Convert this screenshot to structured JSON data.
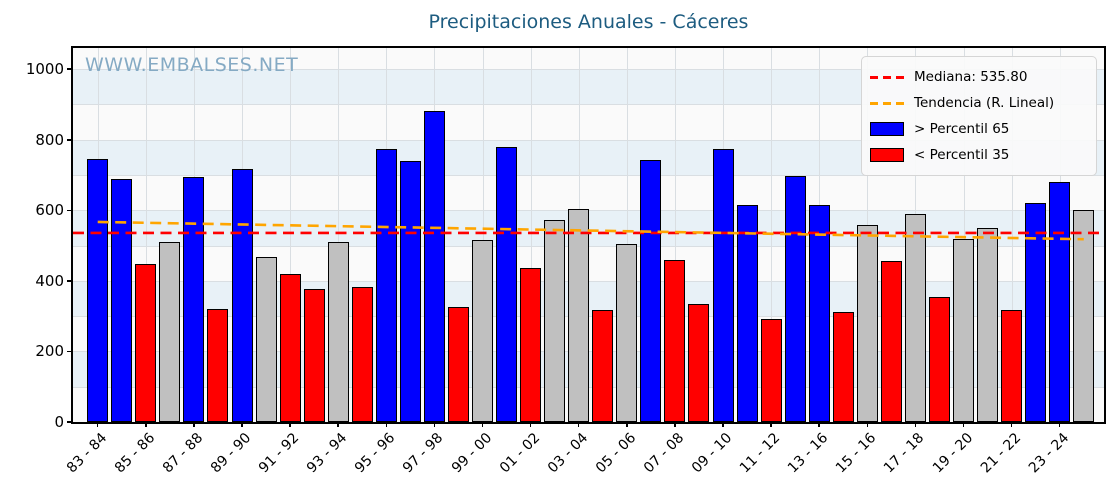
{
  "title": "Precipitaciones Anuales - Cáceres",
  "watermark": "WWW.EMBALSES.NET",
  "colors": {
    "above_p65": "#0000ff",
    "below_p35": "#ff0000",
    "middle": "#c0c0c0",
    "median_line": "#ff0000",
    "trend_line": "#ffa500",
    "title": "#1d5c80",
    "watermark": "#85aac4",
    "band": "#e8f1f7",
    "plot_bg": "#fafafa",
    "grid": "#d9dee2"
  },
  "chart_data": {
    "type": "bar",
    "title": "Precipitaciones Anuales - Cáceres",
    "xlabel": "",
    "ylabel": "",
    "ylim": [
      0,
      1060
    ],
    "y_ticks": [
      0,
      200,
      400,
      600,
      800,
      1000
    ],
    "grid": true,
    "legend_position": "upper right",
    "x_tick_every": 2,
    "x_tick_labels": [
      "83 - 84",
      "85 - 86",
      "87 - 88",
      "89 - 90",
      "91 - 92",
      "93 - 94",
      "95 - 96",
      "97 - 98",
      "99 - 00",
      "01 - 02",
      "03 - 04",
      "05 - 06",
      "07 - 08",
      "09 - 10",
      "11 - 12",
      "13 - 16",
      "15 - 16",
      "17 - 18",
      "19 - 20",
      "21 - 22",
      "23 - 24"
    ],
    "values": [
      745,
      690,
      448,
      510,
      693,
      320,
      716,
      468,
      420,
      376,
      510,
      383,
      775,
      739,
      881,
      325,
      516,
      780,
      436,
      572,
      605,
      317,
      504,
      742,
      458,
      335,
      774,
      615,
      291,
      698,
      616,
      313,
      559,
      455,
      590,
      354,
      520,
      551,
      317,
      622,
      679,
      602
    ],
    "bar_classes": [
      "above_p65",
      "above_p65",
      "below_p35",
      "middle",
      "above_p65",
      "below_p35",
      "above_p65",
      "middle",
      "below_p35",
      "below_p35",
      "middle",
      "below_p35",
      "above_p65",
      "above_p65",
      "above_p65",
      "below_p35",
      "middle",
      "above_p65",
      "below_p35",
      "middle",
      "middle",
      "below_p35",
      "middle",
      "above_p65",
      "below_p35",
      "below_p35",
      "above_p65",
      "above_p65",
      "below_p35",
      "above_p65",
      "above_p65",
      "below_p35",
      "middle",
      "below_p35",
      "middle",
      "below_p35",
      "middle",
      "middle",
      "below_p35",
      "above_p65",
      "above_p65",
      "middle"
    ],
    "median": {
      "label": "Mediana: 535.80",
      "value": 535.8
    },
    "trend": {
      "label": "Tendencia (R. Lineal)",
      "start_value": 567,
      "end_value": 518
    },
    "series_labels": {
      "above_p65": "> Percentil 65",
      "below_p35": "< Percentil 35"
    }
  }
}
